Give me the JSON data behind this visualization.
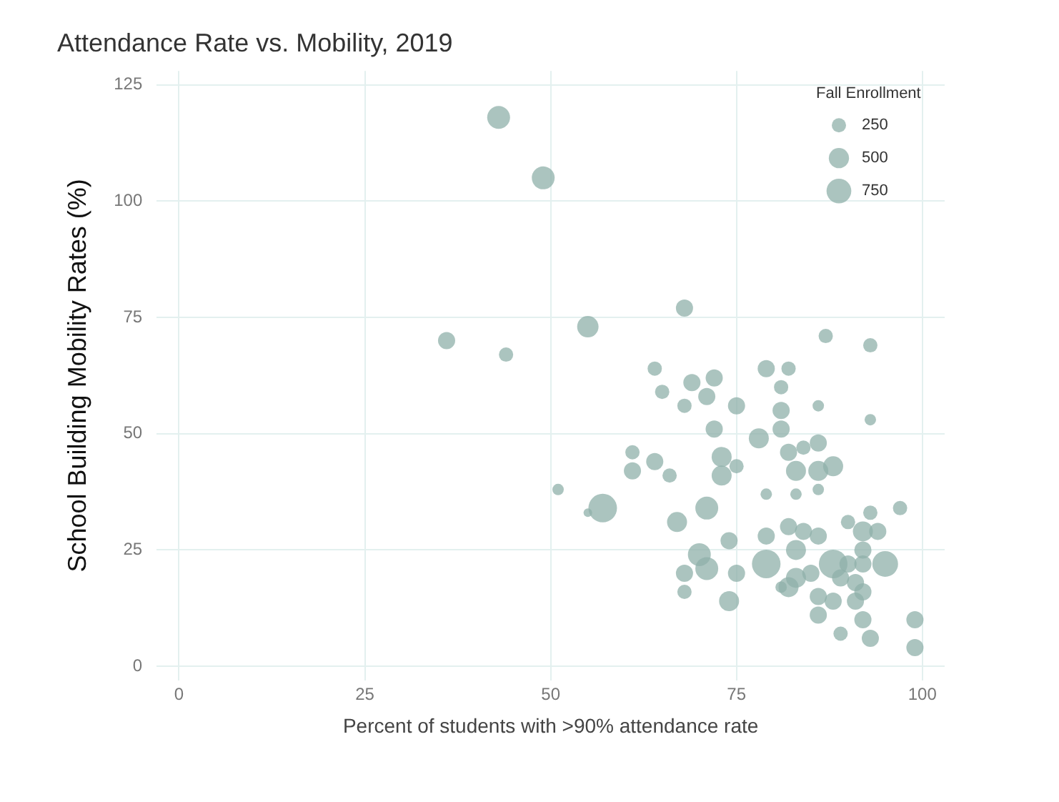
{
  "chart_data": {
    "type": "bubble",
    "title": "Attendance Rate vs. Mobility, 2019",
    "xlabel": "Percent of students with >90% attendance rate",
    "ylabel": "School Building Mobility Rates (%)",
    "legend_title": "Fall Enrollment",
    "size_legend": [
      250,
      500,
      750
    ],
    "grid": true,
    "xlim": [
      -3,
      103
    ],
    "xticks": [
      0,
      25,
      50,
      75,
      100
    ],
    "ylim": [
      -3,
      128
    ],
    "yticks": [
      0,
      25,
      50,
      75,
      100,
      125
    ],
    "x": [
      43,
      49,
      36,
      44,
      55,
      68,
      87,
      93,
      64,
      65,
      69,
      72,
      71,
      68,
      75,
      79,
      82,
      81,
      86,
      93,
      72,
      81,
      81,
      78,
      61,
      64,
      61,
      66,
      73,
      73,
      75,
      84,
      86,
      82,
      83,
      86,
      88,
      51,
      57,
      55,
      67,
      71,
      79,
      83,
      86,
      74,
      79,
      82,
      84,
      86,
      90,
      93,
      97,
      92,
      94,
      92,
      70,
      71,
      68,
      68,
      75,
      74,
      79,
      83,
      83,
      82,
      81,
      88,
      90,
      92,
      95,
      89,
      91,
      86,
      88,
      91,
      92,
      86,
      89,
      92,
      93,
      99,
      99,
      85
    ],
    "values": [
      118,
      105,
      70,
      67,
      73,
      77,
      71,
      69,
      64,
      59,
      61,
      62,
      58,
      56,
      56,
      64,
      64,
      60,
      56,
      53,
      51,
      55,
      51,
      49,
      46,
      44,
      42,
      41,
      45,
      41,
      43,
      47,
      48,
      46,
      42,
      42,
      43,
      38,
      34,
      33,
      31,
      34,
      37,
      37,
      38,
      27,
      28,
      30,
      29,
      28,
      31,
      33,
      34,
      29,
      29,
      25,
      24,
      21,
      20,
      16,
      20,
      14,
      22,
      25,
      19,
      17,
      17,
      22,
      22,
      22,
      22,
      19,
      18,
      15,
      14,
      14,
      16,
      11,
      7,
      10,
      6,
      10,
      4,
      20
    ],
    "sizes": [
      640,
      640,
      360,
      250,
      560,
      360,
      250,
      250,
      250,
      250,
      360,
      360,
      360,
      250,
      360,
      360,
      250,
      250,
      160,
      160,
      360,
      360,
      360,
      490,
      250,
      360,
      360,
      250,
      490,
      490,
      250,
      250,
      360,
      360,
      490,
      490,
      490,
      160,
      1000,
      90,
      490,
      640,
      160,
      160,
      160,
      360,
      360,
      360,
      360,
      360,
      250,
      250,
      250,
      490,
      360,
      360,
      640,
      640,
      360,
      250,
      360,
      490,
      1000,
      490,
      490,
      490,
      160,
      1000,
      360,
      360,
      810,
      360,
      360,
      360,
      360,
      360,
      360,
      360,
      250,
      360,
      360,
      360,
      360,
      360
    ],
    "color": "#8fb0aa"
  }
}
